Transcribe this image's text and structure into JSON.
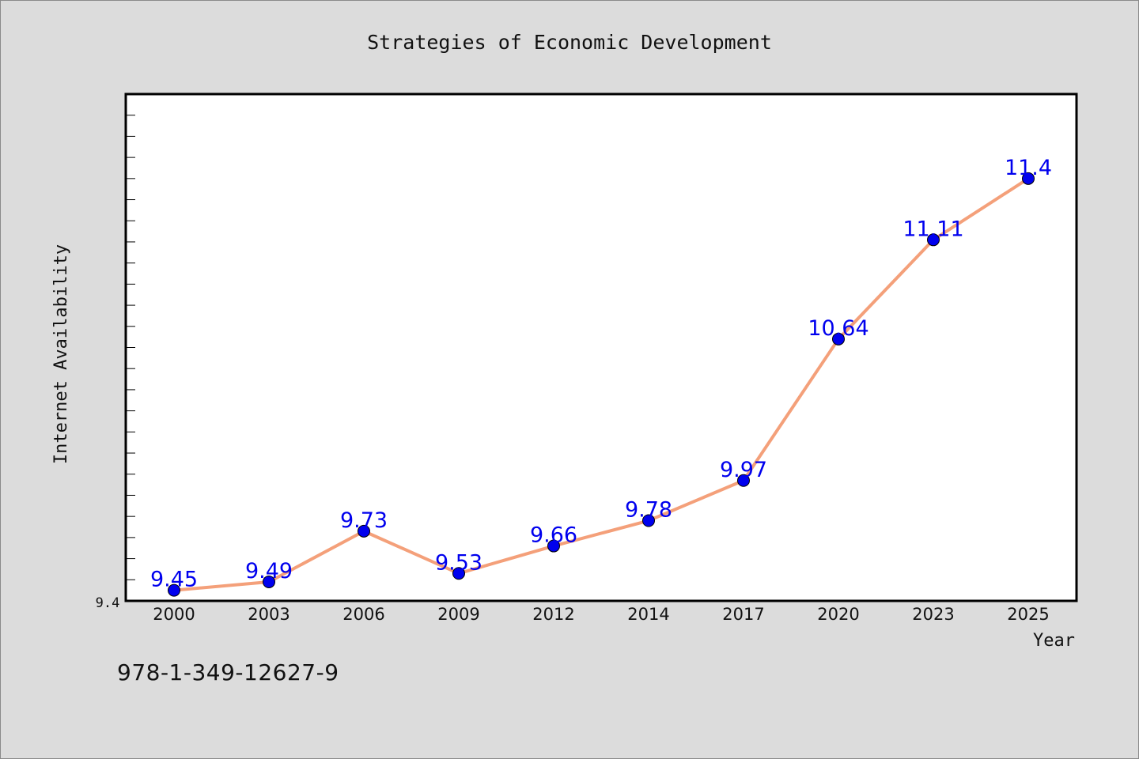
{
  "chart_data": {
    "type": "line",
    "title": "Strategies of Economic Development",
    "xlabel": "Year",
    "ylabel": "Internet Availability",
    "categories": [
      "2000",
      "2003",
      "2006",
      "2009",
      "2012",
      "2014",
      "2017",
      "2020",
      "2023",
      "2025"
    ],
    "series": [
      {
        "values": [
          9.45,
          9.49,
          9.73,
          9.53,
          9.66,
          9.78,
          9.97,
          10.64,
          11.11,
          11.4
        ],
        "data_labels": [
          "9.45",
          "9.49",
          "9.73",
          "9.53",
          "9.66",
          "9.78",
          "9.97",
          "10.64",
          "11.11",
          "11.4"
        ]
      }
    ],
    "ylim": [
      9.4,
      11.8
    ],
    "y_tick_labels": [
      "9.4"
    ],
    "y_minor_tick_step": 0.1,
    "grid": false,
    "legend": "none",
    "colors": {
      "line": "#f4a07a",
      "marker": "#0000ee",
      "data_label": "#0000ee",
      "plot_background": "#ffffff",
      "figure_background": "#dcdcdc"
    }
  },
  "footer": {
    "isbn": "978-1-349-12627-9"
  }
}
